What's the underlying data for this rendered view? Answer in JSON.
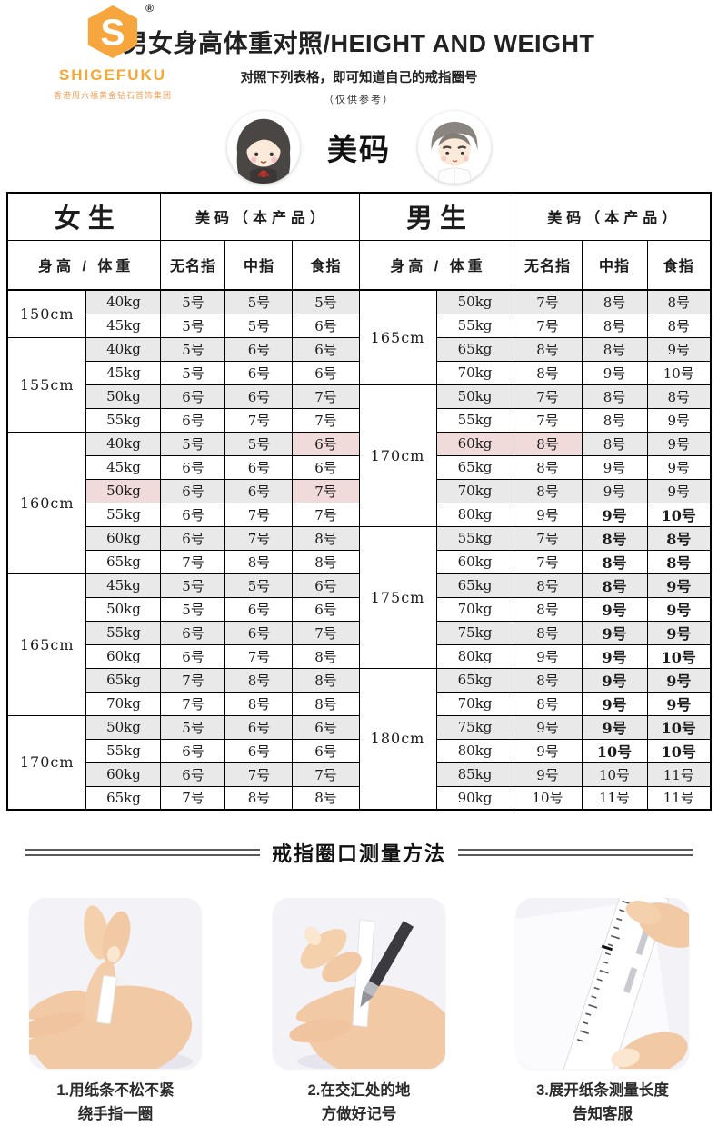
{
  "logo": {
    "brand": "SHIGEFUKU",
    "registered": "®",
    "monogram": "S",
    "company": "香港周六福黄金钻石首饰集团"
  },
  "header": {
    "title": "男女身高体重对照/HEIGHT AND WEIGHT",
    "subtitle": "对照下列表格，即可知道自己的戒指圈号",
    "note": "（仅供参考）",
    "badge": "美码"
  },
  "table": {
    "left": {
      "gender": "女生",
      "product_header": "美码（本产品）",
      "hw_header": "身高 / 体重",
      "fingers": [
        "无名指",
        "中指",
        "食指"
      ],
      "groups": [
        {
          "height": "150cm",
          "rows": [
            {
              "w": "40kg",
              "v": [
                "5号",
                "5号",
                "5号"
              ]
            },
            {
              "w": "45kg",
              "v": [
                "5号",
                "5号",
                "6号"
              ]
            }
          ]
        },
        {
          "height": "155cm",
          "rows": [
            {
              "w": "40kg",
              "v": [
                "5号",
                "6号",
                "6号"
              ]
            },
            {
              "w": "45kg",
              "v": [
                "5号",
                "6号",
                "6号"
              ]
            },
            {
              "w": "50kg",
              "v": [
                "6号",
                "6号",
                "7号"
              ]
            },
            {
              "w": "55kg",
              "v": [
                "6号",
                "7号",
                "7号"
              ]
            }
          ]
        },
        {
          "height": "160cm",
          "rows": [
            {
              "w": "40kg",
              "v": [
                "5号",
                "5号",
                "6号"
              ],
              "hl": [
                3
              ]
            },
            {
              "w": "45kg",
              "v": [
                "6号",
                "6号",
                "6号"
              ]
            },
            {
              "w": "50kg",
              "v": [
                "6号",
                "6号",
                "7号"
              ],
              "hl": [
                0,
                3
              ]
            },
            {
              "w": "55kg",
              "v": [
                "6号",
                "7号",
                "7号"
              ]
            },
            {
              "w": "60kg",
              "v": [
                "6号",
                "7号",
                "8号"
              ]
            },
            {
              "w": "65kg",
              "v": [
                "7号",
                "8号",
                "8号"
              ]
            }
          ]
        },
        {
          "height": "165cm",
          "rows": [
            {
              "w": "45kg",
              "v": [
                "5号",
                "5号",
                "6号"
              ]
            },
            {
              "w": "50kg",
              "v": [
                "5号",
                "6号",
                "6号"
              ]
            },
            {
              "w": "55kg",
              "v": [
                "6号",
                "6号",
                "7号"
              ]
            },
            {
              "w": "60kg",
              "v": [
                "6号",
                "7号",
                "8号"
              ]
            },
            {
              "w": "65kg",
              "v": [
                "7号",
                "8号",
                "8号"
              ]
            },
            {
              "w": "70kg",
              "v": [
                "7号",
                "8号",
                "8号"
              ]
            }
          ]
        },
        {
          "height": "170cm",
          "rows": [
            {
              "w": "50kg",
              "v": [
                "5号",
                "6号",
                "6号"
              ]
            },
            {
              "w": "55kg",
              "v": [
                "6号",
                "6号",
                "6号"
              ]
            },
            {
              "w": "60kg",
              "v": [
                "6号",
                "7号",
                "7号"
              ]
            },
            {
              "w": "65kg",
              "v": [
                "7号",
                "8号",
                "8号"
              ]
            }
          ]
        }
      ]
    },
    "right": {
      "gender": "男生",
      "product_header": "美码（本产品）",
      "hw_header": "身高 / 体重",
      "fingers": [
        "无名指",
        "中指",
        "食指"
      ],
      "groups": [
        {
          "height": "165cm",
          "rows": [
            {
              "w": "50kg",
              "v": [
                "7号",
                "8号",
                "8号"
              ]
            },
            {
              "w": "55kg",
              "v": [
                "7号",
                "8号",
                "8号"
              ]
            },
            {
              "w": "65kg",
              "v": [
                "8号",
                "8号",
                "9号"
              ]
            },
            {
              "w": "70kg",
              "v": [
                "8号",
                "9号",
                "10号"
              ]
            }
          ]
        },
        {
          "height": "170cm",
          "rows": [
            {
              "w": "50kg",
              "v": [
                "7号",
                "8号",
                "8号"
              ]
            },
            {
              "w": "55kg",
              "v": [
                "7号",
                "8号",
                "9号"
              ]
            },
            {
              "w": "60kg",
              "v": [
                "8号",
                "8号",
                "9号"
              ],
              "hl": [
                0,
                1
              ]
            },
            {
              "w": "65kg",
              "v": [
                "8号",
                "9号",
                "9号"
              ]
            },
            {
              "w": "70kg",
              "v": [
                "8号",
                "9号",
                "9号"
              ]
            },
            {
              "w": "80kg",
              "v": [
                "9号",
                "9号",
                "10号"
              ],
              "bold": [
                2,
                3
              ]
            }
          ]
        },
        {
          "height": "175cm",
          "rows": [
            {
              "w": "55kg",
              "v": [
                "7号",
                "8号",
                "8号"
              ],
              "bold": [
                2,
                3
              ]
            },
            {
              "w": "60kg",
              "v": [
                "7号",
                "8号",
                "8号"
              ],
              "bold": [
                2,
                3
              ]
            },
            {
              "w": "65kg",
              "v": [
                "8号",
                "8号",
                "9号"
              ],
              "bold": [
                2,
                3
              ]
            },
            {
              "w": "70kg",
              "v": [
                "8号",
                "9号",
                "9号"
              ],
              "bold": [
                2,
                3
              ]
            },
            {
              "w": "75kg",
              "v": [
                "8号",
                "9号",
                "9号"
              ],
              "bold": [
                2,
                3
              ]
            },
            {
              "w": "80kg",
              "v": [
                "9号",
                "9号",
                "10号"
              ],
              "bold": [
                2,
                3
              ]
            }
          ]
        },
        {
          "height": "180cm",
          "rows": [
            {
              "w": "65kg",
              "v": [
                "8号",
                "9号",
                "9号"
              ],
              "bold": [
                2,
                3
              ]
            },
            {
              "w": "70kg",
              "v": [
                "8号",
                "9号",
                "9号"
              ],
              "bold": [
                2,
                3
              ]
            },
            {
              "w": "75kg",
              "v": [
                "9号",
                "9号",
                "10号"
              ],
              "bold": [
                2,
                3
              ]
            },
            {
              "w": "80kg",
              "v": [
                "9号",
                "10号",
                "10号"
              ],
              "bold": [
                2,
                3
              ]
            },
            {
              "w": "85kg",
              "v": [
                "9号",
                "10号",
                "11号"
              ]
            },
            {
              "w": "90kg",
              "v": [
                "10号",
                "11号",
                "11号"
              ]
            }
          ]
        }
      ]
    }
  },
  "measure": {
    "title": "戒指圈口测量方法",
    "steps": [
      {
        "lines": [
          "1.用纸条不松不紧",
          "绕手指一圈"
        ]
      },
      {
        "lines": [
          "2.在交汇处的地",
          "方做好记号"
        ]
      },
      {
        "lines": [
          "3.展开纸条测量长度",
          "告知客服"
        ]
      }
    ]
  },
  "colors": {
    "brand_orange": "#f5a733",
    "stripe_gray": "#e9e9e9",
    "highlight_pink": "#f0dbda",
    "border_black": "#000000",
    "photo_bg": "#f3f2f7"
  }
}
